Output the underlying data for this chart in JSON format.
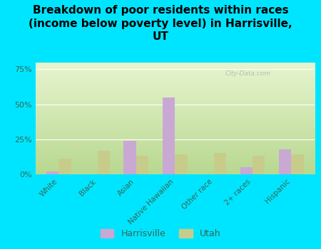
{
  "categories": [
    "White",
    "Black",
    "Asian",
    "Native Hawaiian",
    "Other race",
    "2+ races",
    "Hispanic"
  ],
  "harrisville": [
    2,
    0,
    24,
    55,
    0,
    5,
    18
  ],
  "utah": [
    11,
    17,
    13,
    14,
    15,
    13,
    14
  ],
  "harrisville_color": "#c9a8d4",
  "utah_color": "#c8cc8a",
  "bg_color": "#00e5ff",
  "title": "Breakdown of poor residents within races\n(income below poverty level) in Harrisville,\nUT",
  "title_fontsize": 11,
  "ylabel_ticks": [
    "0%",
    "25%",
    "50%",
    "75%"
  ],
  "yticks": [
    0,
    25,
    50,
    75
  ],
  "ylim": [
    0,
    80
  ],
  "legend_harrisville": "Harrisville",
  "legend_utah": "Utah",
  "watermark": "City-Data.com",
  "grad_bottom": "#e8f5d0",
  "grad_top": "#b8d890"
}
